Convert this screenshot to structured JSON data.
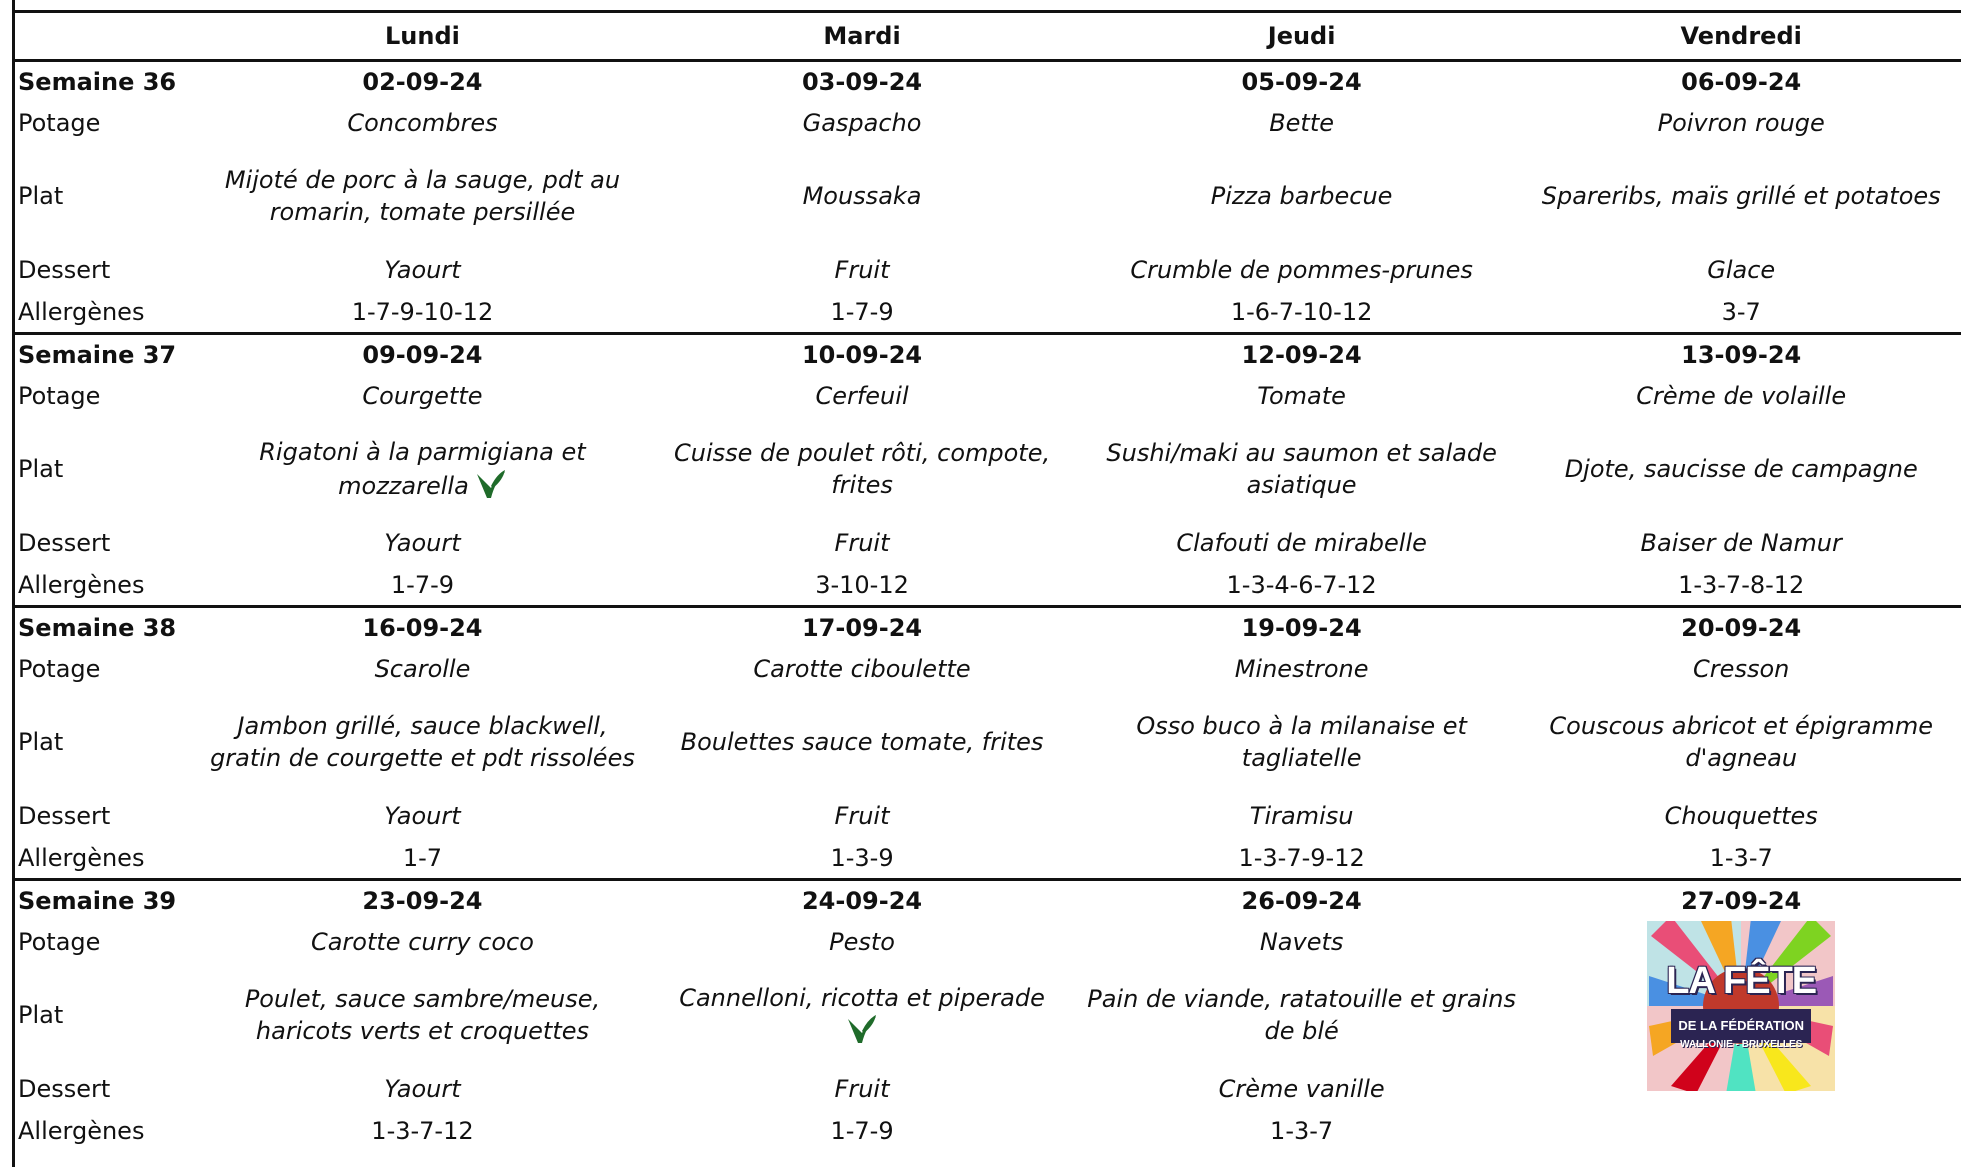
{
  "header": {
    "days": [
      "Lundi",
      "Mardi",
      "Jeudi",
      "Vendredi"
    ]
  },
  "row_labels": {
    "potage": "Potage",
    "plat": "Plat",
    "dessert": "Dessert",
    "allergenes": "Allergènes"
  },
  "weeks": [
    {
      "label": "Semaine 36",
      "dates": [
        "02-09-24",
        "03-09-24",
        "05-09-24",
        "06-09-24"
      ],
      "potage": [
        "Concombres",
        "Gaspacho",
        "Bette",
        "Poivron rouge"
      ],
      "plat": [
        "Mijoté de porc à la sauge, pdt au romarin, tomate persillée",
        "Moussaka",
        "Pizza barbecue",
        "Spareribs, maïs grillé et potatoes"
      ],
      "dessert": [
        "Yaourt",
        "Fruit",
        "Crumble de pommes-prunes",
        "Glace"
      ],
      "allergenes": [
        "1-7-9-10-12",
        "1-7-9",
        "1-6-7-10-12",
        "3-7"
      ]
    },
    {
      "label": "Semaine 37",
      "dates": [
        "09-09-24",
        "10-09-24",
        "12-09-24",
        "13-09-24"
      ],
      "potage": [
        "Courgette",
        "Cerfeuil",
        "Tomate",
        "Crème de volaille"
      ],
      "plat": [
        "Rigatoni à la parmigiana et mozzarella",
        "Cuisse de poulet rôti, compote, frites",
        "Sushi/maki au saumon et salade asiatique",
        "Djote, saucisse de campagne"
      ],
      "dessert": [
        "Yaourt",
        "Fruit",
        "Clafouti de mirabelle",
        "Baiser de Namur"
      ],
      "allergenes": [
        "1-7-9",
        "3-10-12",
        "1-3-4-6-7-12",
        "1-3-7-8-12"
      ]
    },
    {
      "label": "Semaine 38",
      "dates": [
        "16-09-24",
        "17-09-24",
        "19-09-24",
        "20-09-24"
      ],
      "potage": [
        "Scarolle",
        "Carotte ciboulette",
        "Minestrone",
        "Cresson"
      ],
      "plat": [
        "Jambon grillé, sauce blackwell, gratin de courgette et pdt rissolées",
        "Boulettes sauce tomate, frites",
        "Osso buco à la milanaise et tagliatelle",
        "Couscous abricot et épigramme d'agneau"
      ],
      "dessert": [
        "Yaourt",
        "Fruit",
        "Tiramisu",
        "Chouquettes"
      ],
      "allergenes": [
        "1-7",
        "1-3-9",
        "1-3-7-9-12",
        "1-3-7"
      ]
    },
    {
      "label": "Semaine 39",
      "dates": [
        "23-09-24",
        "24-09-24",
        "26-09-24",
        "27-09-24"
      ],
      "potage": [
        "Carotte curry coco",
        "Pesto",
        "Navets"
      ],
      "plat": [
        "Poulet, sauce sambre/meuse, haricots verts et croquettes",
        "Cannelloni, ricotta et piperade",
        "Pain de viande, ratatouille et grains de blé"
      ],
      "dessert": [
        "Yaourt",
        "Fruit",
        "Crème vanille"
      ],
      "allergenes": [
        "1-3-7-12",
        "1-7-9",
        "1-3-7"
      ]
    }
  ],
  "logo": {
    "line1": "LA FÊTE",
    "line2": "DE LA FÉDÉRATION",
    "line3": "WALLONIE - BRUXELLES"
  },
  "icons": {
    "vegetarian": "vegetarian-leaf-icon"
  },
  "colors": {
    "leaf": "#1f6b2a",
    "rule": "#111111",
    "logo_dark": "#2b2452"
  }
}
